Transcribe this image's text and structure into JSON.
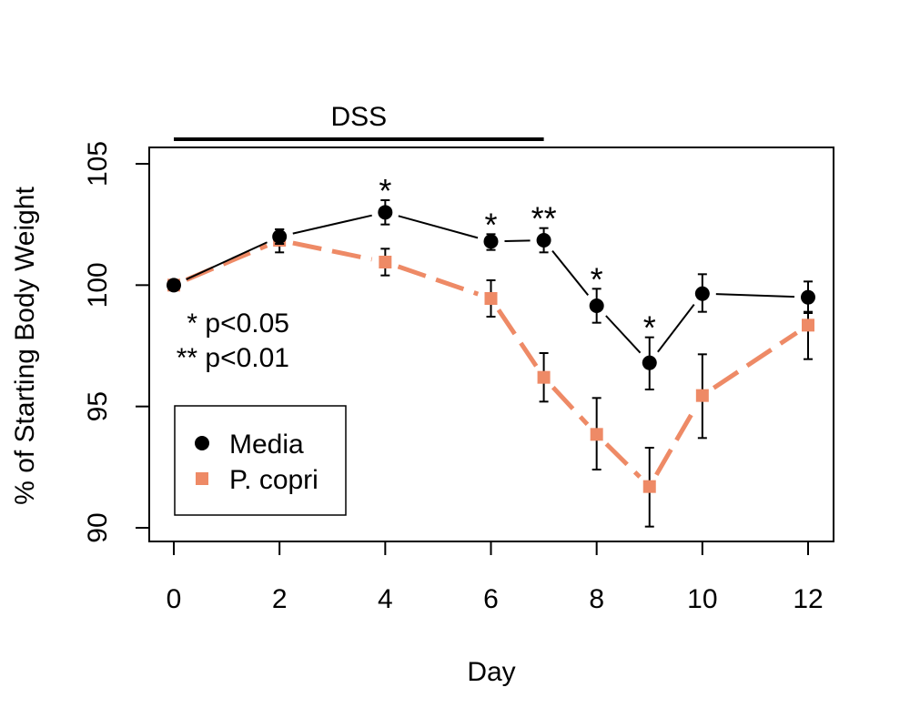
{
  "chart_data": {
    "type": "line",
    "xlabel": "Day",
    "ylabel": "% of Starting Body Weight",
    "xlim": [
      0,
      12
    ],
    "ylim": [
      90,
      105
    ],
    "xticks": [
      "0",
      "2",
      "4",
      "6",
      "8",
      "10",
      "12"
    ],
    "yticks": [
      "90",
      "95",
      "100",
      "105"
    ],
    "grid": false,
    "legend_position": "bottom-left",
    "treatment_bar": {
      "label": "DSS",
      "start": 0,
      "end": 7
    },
    "significance_note": [
      "* p<0.05",
      "** p<0.01"
    ],
    "series": [
      {
        "name": "Media",
        "color": "#000000",
        "marker": "circle",
        "line": "solid",
        "x": [
          0,
          2,
          4,
          6,
          7,
          8,
          9,
          10,
          12
        ],
        "y": [
          100.0,
          102.0,
          103.0,
          101.8,
          101.85,
          99.15,
          96.8,
          99.65,
          99.5
        ],
        "err_low": [
          99.9,
          101.7,
          102.5,
          101.45,
          101.35,
          98.45,
          95.7,
          98.9,
          98.9
        ],
        "err_high": [
          100.05,
          102.3,
          103.5,
          102.1,
          102.35,
          99.85,
          97.85,
          100.45,
          100.15
        ],
        "significance": [
          "",
          "",
          "*",
          "*",
          "**",
          "*",
          "*",
          "",
          ""
        ]
      },
      {
        "name": "P. copri",
        "color": "#ee8a66",
        "marker": "square",
        "line": "dashed",
        "x": [
          0,
          2,
          4,
          6,
          7,
          8,
          9,
          10,
          12
        ],
        "y": [
          100.0,
          101.85,
          100.95,
          99.45,
          96.2,
          93.85,
          91.7,
          95.45,
          98.35
        ],
        "err_low": [
          99.9,
          101.35,
          100.4,
          98.7,
          95.2,
          92.4,
          90.05,
          93.7,
          96.95
        ],
        "err_high": [
          100.05,
          102.3,
          101.5,
          100.2,
          97.2,
          95.35,
          93.3,
          97.15,
          98.85
        ]
      }
    ]
  }
}
